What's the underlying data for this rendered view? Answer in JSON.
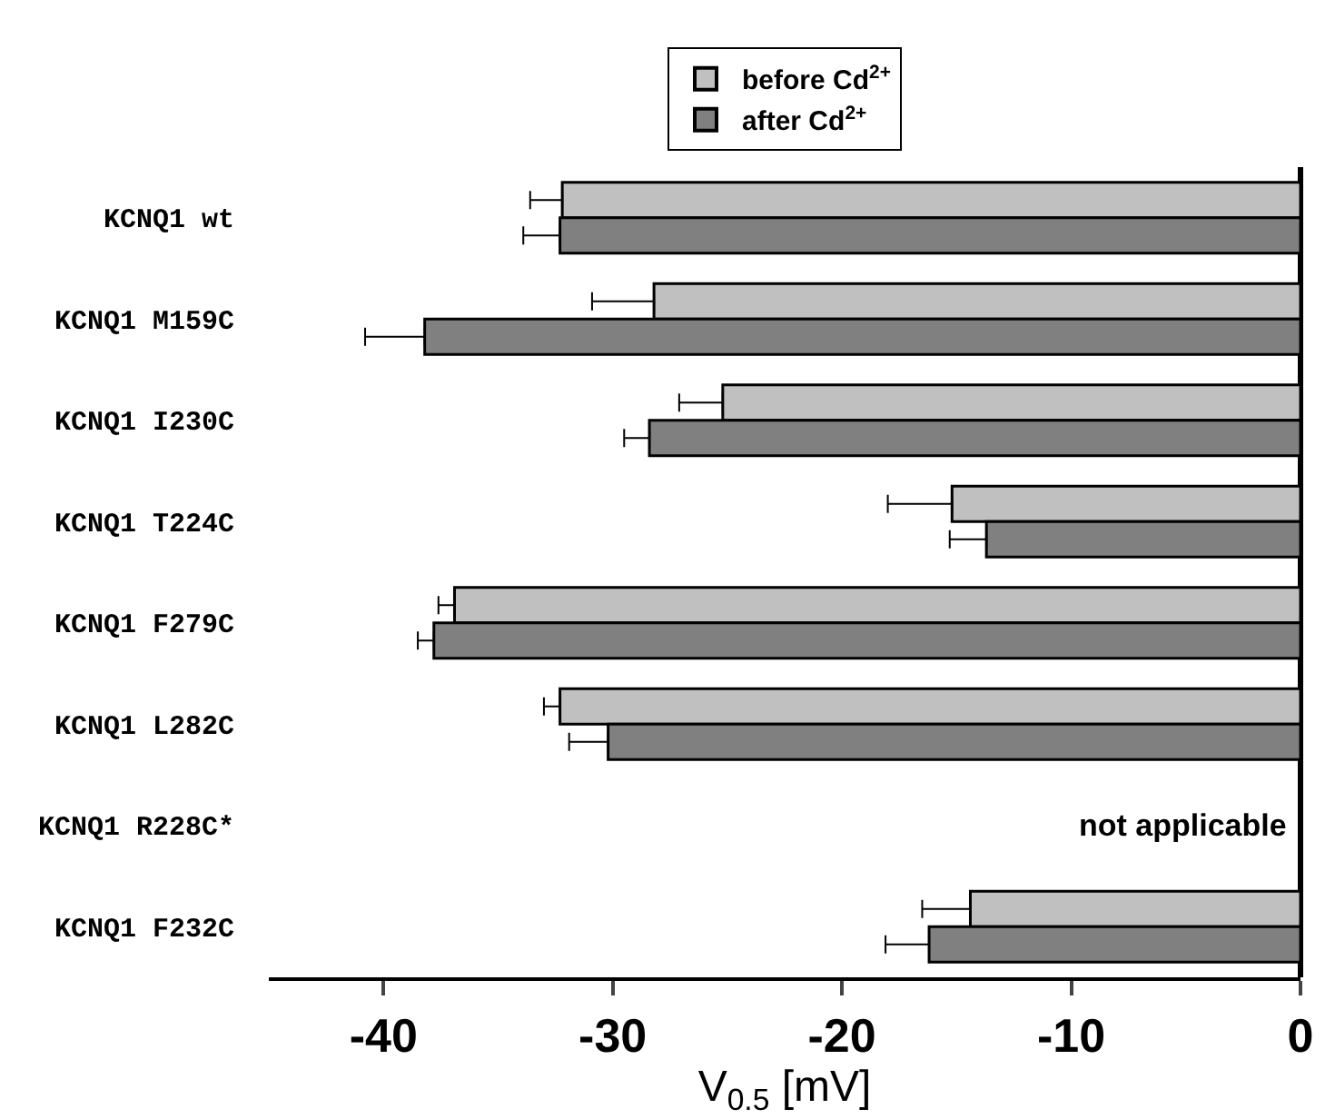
{
  "chart_data": {
    "type": "bar",
    "orientation": "horizontal",
    "categories": [
      "KCNQ1 wt",
      "KCNQ1 M159C",
      "KCNQ1 I230C",
      "KCNQ1 T224C",
      "KCNQ1 F279C",
      "KCNQ1 L282C",
      "KCNQ1 R228C*",
      "KCNQ1 F232C"
    ],
    "series": [
      {
        "name": "before Cd$^{2+}$",
        "color": "#c0c0c0",
        "values": [
          -32.2,
          -28.2,
          -25.2,
          -15.2,
          -36.9,
          -32.3,
          null,
          -14.4
        ],
        "errors": [
          [
            -33.6,
            -32.2
          ],
          [
            -30.9,
            -28.2
          ],
          [
            -27.1,
            -25.2
          ],
          [
            -18.0,
            -15.2
          ],
          [
            -37.6,
            -36.9
          ],
          [
            -33.0,
            -32.3
          ],
          null,
          [
            -16.5,
            -14.4
          ]
        ]
      },
      {
        "name": "after Cd$^{2+}$",
        "color": "#808080",
        "values": [
          -32.3,
          -38.2,
          -28.4,
          -13.7,
          -37.8,
          -30.2,
          null,
          -16.2
        ],
        "errors": [
          [
            -33.9,
            -32.3
          ],
          [
            -40.8,
            -38.2
          ],
          [
            -29.5,
            -28.4
          ],
          [
            -15.3,
            -13.7
          ],
          [
            -38.5,
            -37.8
          ],
          [
            -31.9,
            -30.2
          ],
          null,
          [
            -18.1,
            -16.2
          ]
        ]
      }
    ],
    "xlabel": "V$_{0.5}$ [mV]",
    "xlim": [
      -45,
      0
    ],
    "xticks": [
      -40,
      -30,
      -20,
      -10,
      0
    ],
    "annotations": [
      "not applicable"
    ],
    "legend": "top"
  }
}
